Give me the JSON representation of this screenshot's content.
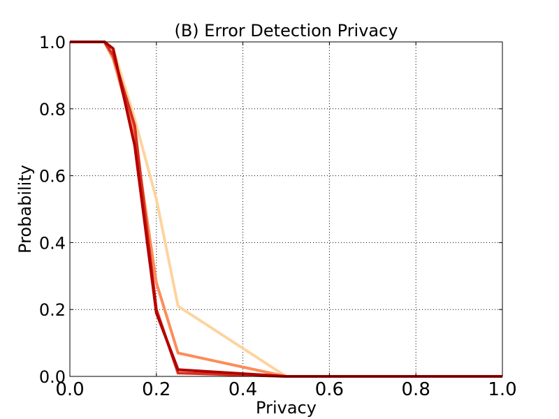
{
  "chart_data": {
    "type": "line",
    "title": "(B) Error Detection Privacy",
    "xlabel": "Privacy",
    "ylabel": "Probability",
    "xlim": [
      0.0,
      1.0
    ],
    "ylim": [
      0.0,
      1.0
    ],
    "x_ticks": [
      0.0,
      0.2,
      0.4,
      0.6,
      0.8,
      1.0
    ],
    "y_ticks": [
      0.0,
      0.2,
      0.4,
      0.6,
      0.8,
      1.0
    ],
    "x_tick_labels": [
      "0.0",
      "0.2",
      "0.4",
      "0.6",
      "0.8",
      "1.0"
    ],
    "y_tick_labels": [
      "0.0",
      "0.2",
      "0.4",
      "0.6",
      "0.8",
      "1.0"
    ],
    "grid": true,
    "series": [
      {
        "color": "#fdd49e",
        "points": [
          [
            0.0,
            1.0
          ],
          [
            0.08,
            1.0
          ],
          [
            0.1,
            0.98
          ],
          [
            0.15,
            0.77
          ],
          [
            0.2,
            0.53
          ],
          [
            0.25,
            0.21
          ],
          [
            0.5,
            0.0
          ],
          [
            1.0,
            0.0
          ]
        ]
      },
      {
        "color": "#fc8d59",
        "points": [
          [
            0.0,
            1.0
          ],
          [
            0.08,
            1.0
          ],
          [
            0.1,
            0.95
          ],
          [
            0.15,
            0.72
          ],
          [
            0.2,
            0.28
          ],
          [
            0.25,
            0.07
          ],
          [
            0.5,
            0.0
          ],
          [
            1.0,
            0.0
          ]
        ]
      },
      {
        "color": "#d7301f",
        "points": [
          [
            0.0,
            1.0
          ],
          [
            0.08,
            1.0
          ],
          [
            0.1,
            0.96
          ],
          [
            0.15,
            0.75
          ],
          [
            0.2,
            0.2
          ],
          [
            0.25,
            0.01
          ],
          [
            0.5,
            0.0
          ],
          [
            1.0,
            0.0
          ]
        ]
      },
      {
        "color": "#b30000",
        "points": [
          [
            0.0,
            1.0
          ],
          [
            0.08,
            1.0
          ],
          [
            0.1,
            0.98
          ],
          [
            0.15,
            0.69
          ],
          [
            0.2,
            0.19
          ],
          [
            0.25,
            0.02
          ],
          [
            0.5,
            0.0
          ],
          [
            1.0,
            0.0
          ]
        ]
      }
    ]
  }
}
